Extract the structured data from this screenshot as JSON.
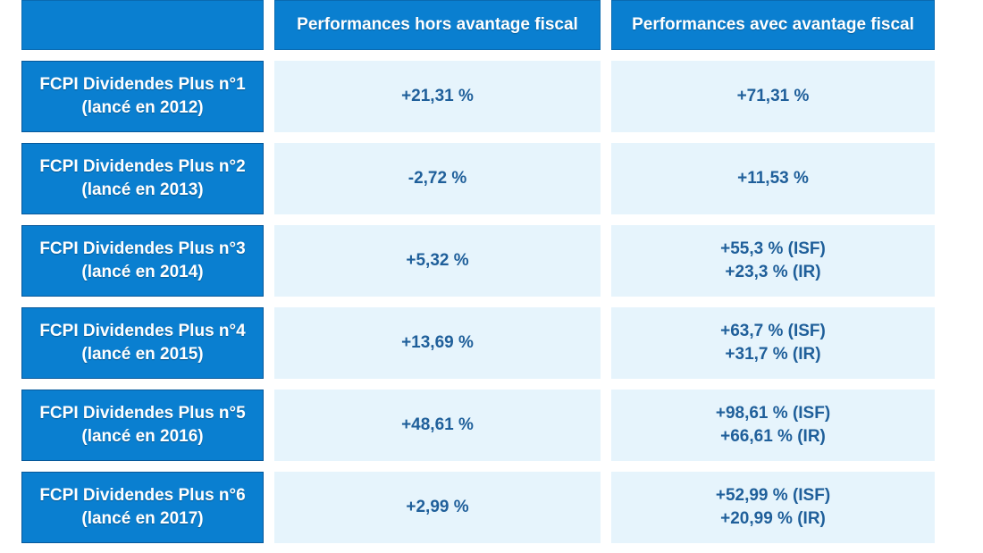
{
  "header": {
    "col1": "",
    "col2": "Performances hors avantage fiscal",
    "col3": "Performances avec avantage fiscal"
  },
  "rows": [
    {
      "name": "FCPI Dividendes Plus n°1",
      "launched": "(lancé en 2012)",
      "hors": "+21,31 %",
      "avec": [
        "+71,31 %"
      ]
    },
    {
      "name": "FCPI Dividendes Plus n°2",
      "launched": "(lancé en 2013)",
      "hors": "-2,72 %",
      "avec": [
        "+11,53 %"
      ]
    },
    {
      "name": "FCPI Dividendes Plus n°3",
      "launched": "(lancé en 2014)",
      "hors": "+5,32 %",
      "avec": [
        "+55,3 % (ISF)",
        "+23,3 % (IR)"
      ]
    },
    {
      "name": "FCPI Dividendes Plus n°4",
      "launched": "(lancé en 2015)",
      "hors": "+13,69 %",
      "avec": [
        "+63,7 % (ISF)",
        "+31,7 % (IR)"
      ]
    },
    {
      "name": "FCPI Dividendes Plus n°5",
      "launched": "(lancé en 2016)",
      "hors": "+48,61 %",
      "avec": [
        "+98,61 % (ISF)",
        "+66,61 % (IR)"
      ]
    },
    {
      "name": "FCPI Dividendes Plus n°6",
      "launched": "(lancé en 2017)",
      "hors": "+2,99 %",
      "avec": [
        "+52,99 % (ISF)",
        "+20,99 % (IR)"
      ]
    }
  ],
  "colors": {
    "header_bg": "#0a7fd0",
    "value_bg": "#e6f4fc",
    "value_text": "#1f5f9a",
    "label_text": "#ffffff"
  }
}
